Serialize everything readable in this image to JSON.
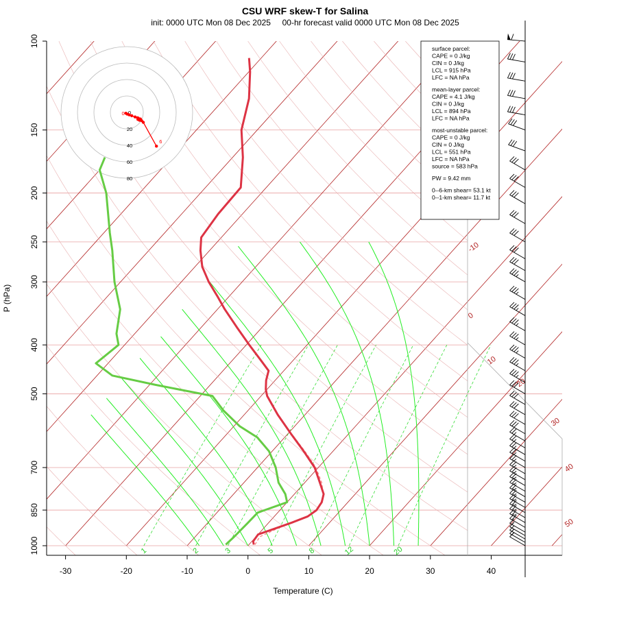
{
  "title": "CSU WRF skew-T for Salina",
  "subtitle": "init: 0000 UTC Mon 08 Dec 2025     00-hr forecast valid 0000 UTC Mon 08 Dec 2025",
  "chart_data": {
    "type": "line",
    "xlabel": "Temperature (C)",
    "ylabel": "P (hPa)",
    "x_ticks": [
      -30,
      -20,
      -10,
      0,
      10,
      20,
      30,
      40
    ],
    "y_ticks": [
      100,
      150,
      200,
      250,
      300,
      400,
      500,
      700,
      850,
      1000
    ],
    "isotherm_labels": [
      -10,
      0,
      10,
      20,
      30,
      40,
      50
    ],
    "mixing_ratio_labels": [
      "1",
      "2",
      "3",
      "5",
      "8",
      "12",
      "20"
    ],
    "temperature": [
      {
        "p": 995,
        "t": 0.8
      },
      {
        "p": 980,
        "t": 0.2
      },
      {
        "p": 950,
        "t": 0.0
      },
      {
        "p": 930,
        "t": 1.5
      },
      {
        "p": 900,
        "t": 3.8
      },
      {
        "p": 875,
        "t": 5.5
      },
      {
        "p": 850,
        "t": 6.0
      },
      {
        "p": 820,
        "t": 5.7
      },
      {
        "p": 790,
        "t": 4.8
      },
      {
        "p": 750,
        "t": 2.5
      },
      {
        "p": 700,
        "t": -0.6
      },
      {
        "p": 650,
        "t": -4.8
      },
      {
        "p": 600,
        "t": -9.5
      },
      {
        "p": 550,
        "t": -14.5
      },
      {
        "p": 505,
        "t": -19.0
      },
      {
        "p": 490,
        "t": -20.2
      },
      {
        "p": 470,
        "t": -21.5
      },
      {
        "p": 450,
        "t": -22.5
      },
      {
        "p": 430,
        "t": -25.2
      },
      {
        "p": 400,
        "t": -29.5
      },
      {
        "p": 370,
        "t": -34.0
      },
      {
        "p": 340,
        "t": -38.8
      },
      {
        "p": 320,
        "t": -42.0
      },
      {
        "p": 300,
        "t": -45.5
      },
      {
        "p": 280,
        "t": -48.8
      },
      {
        "p": 260,
        "t": -51.5
      },
      {
        "p": 245,
        "t": -53.3
      },
      {
        "p": 220,
        "t": -54.0
      },
      {
        "p": 195,
        "t": -54.2
      },
      {
        "p": 170,
        "t": -58.3
      },
      {
        "p": 150,
        "t": -62.6
      },
      {
        "p": 130,
        "t": -66.0
      },
      {
        "p": 115,
        "t": -69.8
      },
      {
        "p": 108,
        "t": -72.0
      }
    ],
    "dewpoint": [
      {
        "p": 995,
        "t": -3.8
      },
      {
        "p": 960,
        "t": -3.6
      },
      {
        "p": 900,
        "t": -3.4
      },
      {
        "p": 860,
        "t": -3.3
      },
      {
        "p": 820,
        "t": 0.0
      },
      {
        "p": 790,
        "t": -1.5
      },
      {
        "p": 750,
        "t": -4.3
      },
      {
        "p": 700,
        "t": -7.0
      },
      {
        "p": 650,
        "t": -10.5
      },
      {
        "p": 610,
        "t": -14.5
      },
      {
        "p": 580,
        "t": -19.0
      },
      {
        "p": 540,
        "t": -24.0
      },
      {
        "p": 505,
        "t": -28.0
      },
      {
        "p": 480,
        "t": -39.0
      },
      {
        "p": 460,
        "t": -47.5
      },
      {
        "p": 435,
        "t": -52.0
      },
      {
        "p": 400,
        "t": -51.0
      },
      {
        "p": 380,
        "t": -53.0
      },
      {
        "p": 340,
        "t": -56.0
      },
      {
        "p": 300,
        "t": -61.0
      },
      {
        "p": 260,
        "t": -66.0
      },
      {
        "p": 240,
        "t": -69.0
      },
      {
        "p": 200,
        "t": -75.5
      },
      {
        "p": 180,
        "t": -80.0
      },
      {
        "p": 170,
        "t": -81.0
      }
    ],
    "parcel": [
      {
        "p": 995,
        "t": 1.0
      },
      {
        "p": 960,
        "t": 0.6
      },
      {
        "p": 915,
        "t": 2.8
      },
      {
        "p": 880,
        "t": 5.2
      },
      {
        "p": 850,
        "t": 6.0
      },
      {
        "p": 800,
        "t": 5.2
      },
      {
        "p": 750,
        "t": 2.8
      },
      {
        "p": 700,
        "t": -0.4
      },
      {
        "p": 650,
        "t": -4.6
      },
      {
        "p": 600,
        "t": -9.4
      }
    ],
    "hodograph_rings": [
      20,
      40,
      60,
      80
    ],
    "hodograph_labels": [
      "0",
      "20",
      "40",
      "60",
      "80"
    ],
    "hodograph_point_labels": [
      "0",
      "6"
    ],
    "hodograph": [
      {
        "u": -1.2,
        "v": -1.0
      },
      {
        "u": 0.5,
        "v": -2.0
      },
      {
        "u": 3.0,
        "v": -3.0
      },
      {
        "u": 6.0,
        "v": -4.0
      },
      {
        "u": 10.0,
        "v": -5.5
      },
      {
        "u": 13.0,
        "v": -6.5
      },
      {
        "u": 14.0,
        "v": -7.0
      },
      {
        "u": 13.5,
        "v": -8.5
      },
      {
        "u": 15.0,
        "v": -9.0
      },
      {
        "u": 16.5,
        "v": -8.0
      },
      {
        "u": 15.5,
        "v": -9.5
      },
      {
        "u": 18.0,
        "v": -10.0
      },
      {
        "u": 20.0,
        "v": -12.0
      },
      {
        "u": 36.0,
        "v": -41.0
      }
    ],
    "wind_barbs": [
      {
        "p": 1000,
        "dir": 300,
        "spd": 10
      },
      {
        "p": 985,
        "dir": 300,
        "spd": 15
      },
      {
        "p": 970,
        "dir": 300,
        "spd": 15
      },
      {
        "p": 955,
        "dir": 300,
        "spd": 10
      },
      {
        "p": 940,
        "dir": 300,
        "spd": 15
      },
      {
        "p": 920,
        "dir": 300,
        "spd": 20
      },
      {
        "p": 900,
        "dir": 300,
        "spd": 25
      },
      {
        "p": 880,
        "dir": 300,
        "spd": 25
      },
      {
        "p": 860,
        "dir": 300,
        "spd": 25
      },
      {
        "p": 840,
        "dir": 300,
        "spd": 25
      },
      {
        "p": 820,
        "dir": 300,
        "spd": 25
      },
      {
        "p": 800,
        "dir": 300,
        "spd": 25
      },
      {
        "p": 780,
        "dir": 300,
        "spd": 25
      },
      {
        "p": 760,
        "dir": 300,
        "spd": 25
      },
      {
        "p": 740,
        "dir": 300,
        "spd": 25
      },
      {
        "p": 720,
        "dir": 300,
        "spd": 25
      },
      {
        "p": 700,
        "dir": 300,
        "spd": 25
      },
      {
        "p": 680,
        "dir": 300,
        "spd": 25
      },
      {
        "p": 660,
        "dir": 300,
        "spd": 25
      },
      {
        "p": 640,
        "dir": 300,
        "spd": 25
      },
      {
        "p": 620,
        "dir": 300,
        "spd": 25
      },
      {
        "p": 600,
        "dir": 300,
        "spd": 30
      },
      {
        "p": 575,
        "dir": 300,
        "spd": 30
      },
      {
        "p": 550,
        "dir": 300,
        "spd": 30
      },
      {
        "p": 525,
        "dir": 300,
        "spd": 30
      },
      {
        "p": 500,
        "dir": 300,
        "spd": 30
      },
      {
        "p": 475,
        "dir": 300,
        "spd": 35
      },
      {
        "p": 450,
        "dir": 300,
        "spd": 35
      },
      {
        "p": 425,
        "dir": 300,
        "spd": 35
      },
      {
        "p": 400,
        "dir": 300,
        "spd": 35
      },
      {
        "p": 375,
        "dir": 300,
        "spd": 35
      },
      {
        "p": 350,
        "dir": 300,
        "spd": 35
      },
      {
        "p": 325,
        "dir": 300,
        "spd": 35
      },
      {
        "p": 300,
        "dir": 300,
        "spd": 35
      },
      {
        "p": 285,
        "dir": 300,
        "spd": 30
      },
      {
        "p": 270,
        "dir": 300,
        "spd": 30
      },
      {
        "p": 250,
        "dir": 300,
        "spd": 30
      },
      {
        "p": 230,
        "dir": 300,
        "spd": 30
      },
      {
        "p": 210,
        "dir": 300,
        "spd": 30
      },
      {
        "p": 195,
        "dir": 300,
        "spd": 30
      },
      {
        "p": 180,
        "dir": 300,
        "spd": 30
      },
      {
        "p": 165,
        "dir": 290,
        "spd": 30
      },
      {
        "p": 150,
        "dir": 290,
        "spd": 30
      },
      {
        "p": 140,
        "dir": 280,
        "spd": 30
      },
      {
        "p": 130,
        "dir": 280,
        "spd": 30
      },
      {
        "p": 120,
        "dir": 280,
        "spd": 30
      },
      {
        "p": 110,
        "dir": 280,
        "spd": 30
      },
      {
        "p": 100,
        "dir": 275,
        "spd": 60
      }
    ],
    "stats": [
      "surface parcel:",
      "CAPE = 0 J/kg",
      "CIN = 0 J/kg",
      "LCL = 915 hPa",
      "LFC = NA hPa",
      "",
      "mean-layer parcel:",
      "CAPE = 4.1 J/kg",
      "CIN = 0 J/kg",
      "LCL = 894 hPa",
      "LFC = NA hPa",
      "",
      "most-unstable parcel:",
      "CAPE = 0 J/kg",
      "CIN = 0 J/kg",
      "LCL = 551 hPa",
      "LFC = NA hPa",
      "source = 583 hPa",
      "",
      "PW =  9.42 mm",
      "",
      "0--6-km shear= 53.1 kt",
      "0--1-km shear= 11.7 kt"
    ]
  }
}
